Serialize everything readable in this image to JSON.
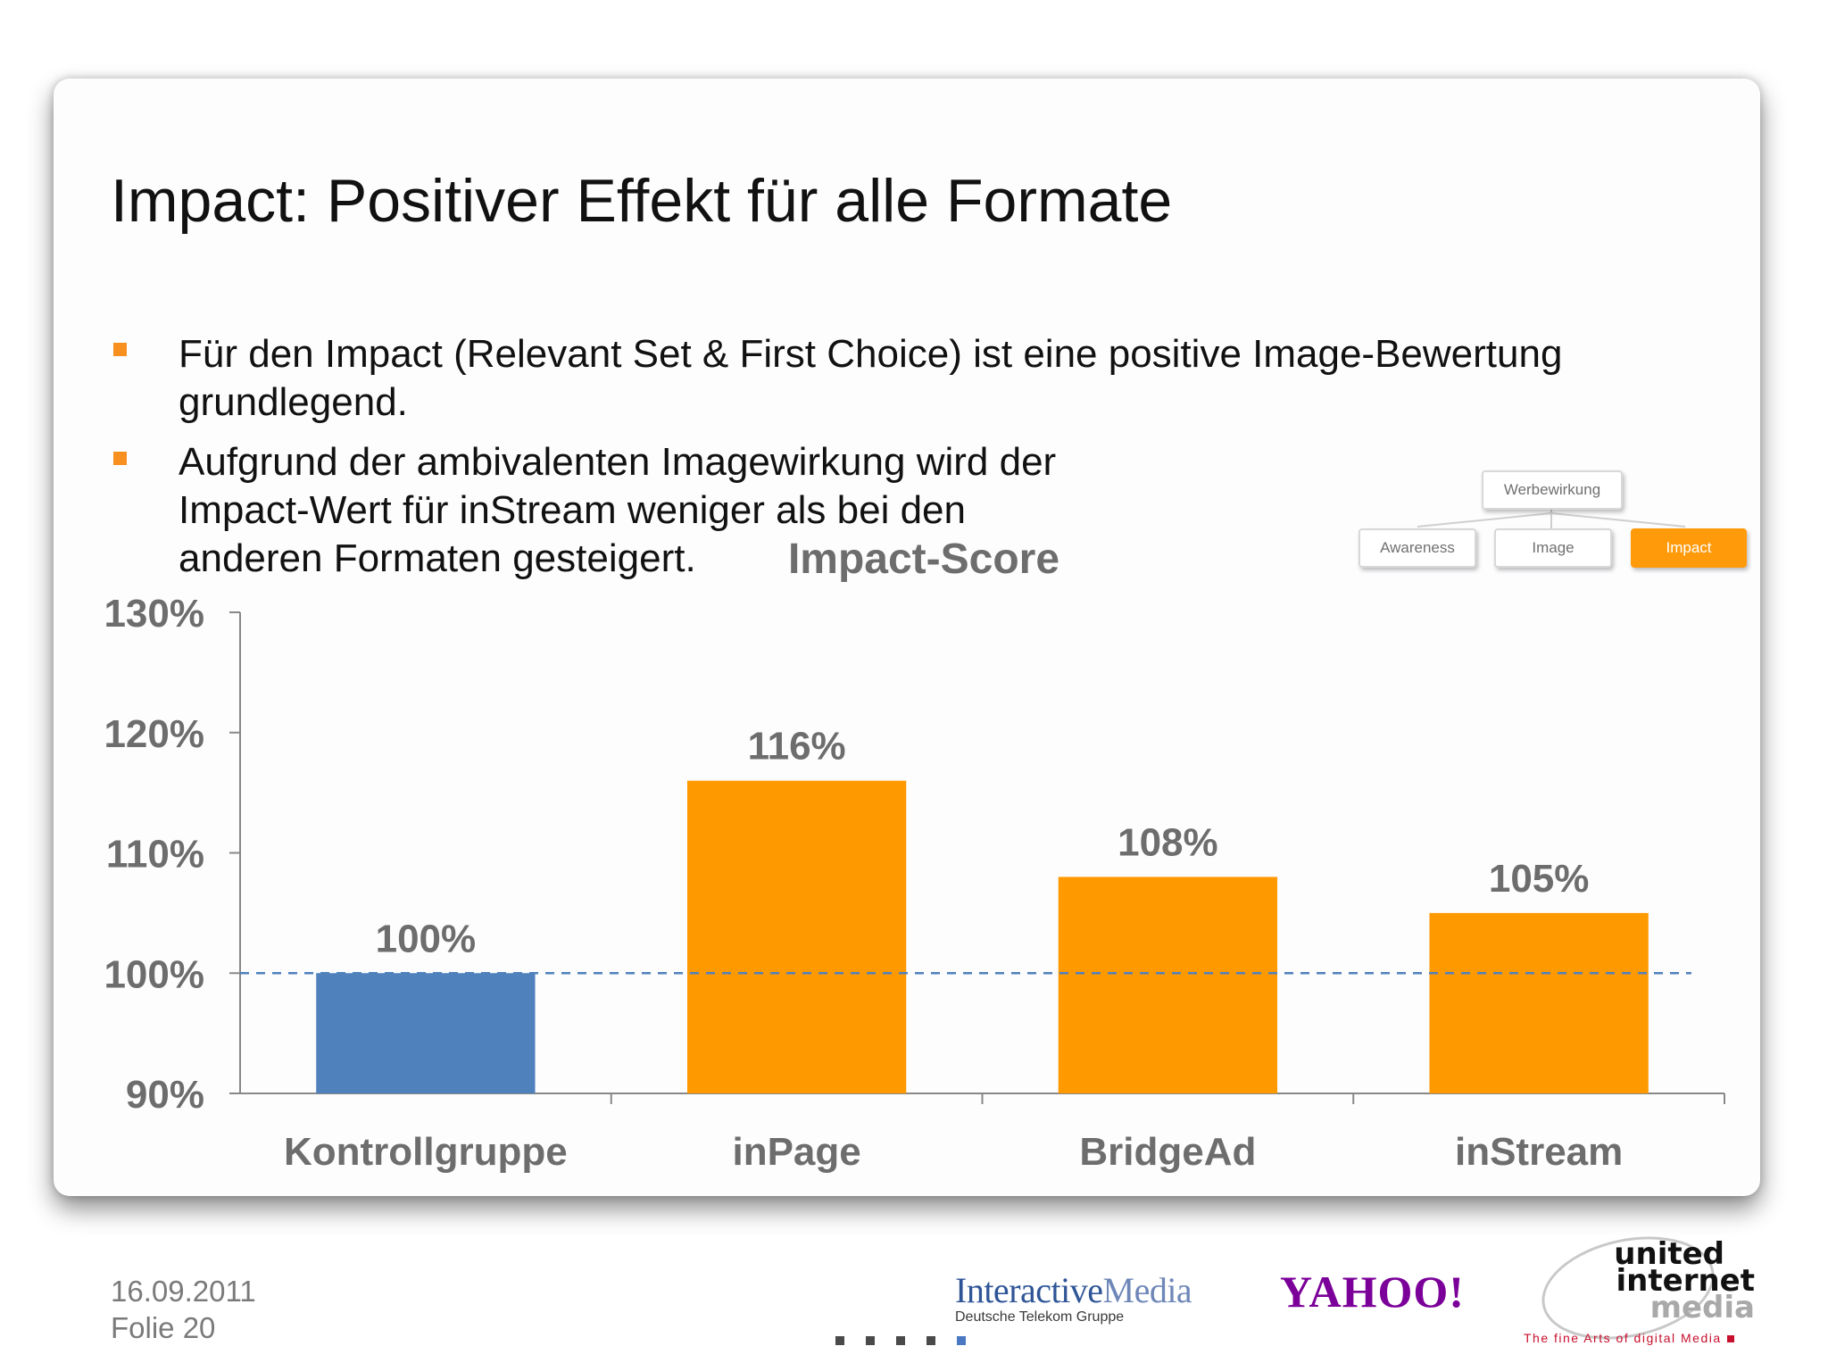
{
  "slide": {
    "title": "Impact: Positiver Effekt für alle Formate",
    "bullets": [
      {
        "text": "Für den Impact (Relevant Set & First Choice) ist eine positive Image-Bewertung grundlegend."
      },
      {
        "text": "Aufgrund der ambivalenten Imagewirkung wird der Impact-Wert für inStream weniger als bei den anderen Formaten gesteigert."
      }
    ],
    "bullet_color": "#f7901e"
  },
  "hierarchy": {
    "root": "Werbewirkung",
    "children": [
      {
        "label": "Awareness",
        "active": false
      },
      {
        "label": "Image",
        "active": false
      },
      {
        "label": "Impact",
        "active": true
      }
    ],
    "active_color": "#ff9a0a"
  },
  "chart_data": {
    "type": "bar",
    "title": "Impact-Score",
    "xlabel": "",
    "ylabel": "",
    "categories": [
      "Kontrollgruppe",
      "inPage",
      "BridgeAd",
      "inStream"
    ],
    "values": [
      100,
      116,
      108,
      105
    ],
    "value_labels": [
      "100%",
      "116%",
      "108%",
      "105%"
    ],
    "bar_colors": [
      "#4f81bd",
      "#ff9900",
      "#ff9900",
      "#ff9900"
    ],
    "ylim": [
      90,
      130
    ],
    "yticks": [
      90,
      100,
      110,
      120,
      130
    ],
    "ytick_labels": [
      "90%",
      "100%",
      "110%",
      "120%",
      "130%"
    ],
    "reference_line": {
      "value": 100,
      "style": "dashed",
      "color": "#4f81bd"
    },
    "grid": false,
    "legend": "none"
  },
  "footer": {
    "date": "16.09.2011",
    "slide_number": "Folie 20",
    "logos": {
      "interactive_media": {
        "strong": "Interactive",
        "light": "Media",
        "subtitle": "Deutsche Telekom Gruppe"
      },
      "yahoo": "YAHOO!",
      "united_internet_media": {
        "line1": "united",
        "line2": "internet",
        "line3": "media",
        "tagline": "The fine Arts of digital Media"
      }
    },
    "nav_dots_total": 5,
    "nav_dots_active": 5
  }
}
